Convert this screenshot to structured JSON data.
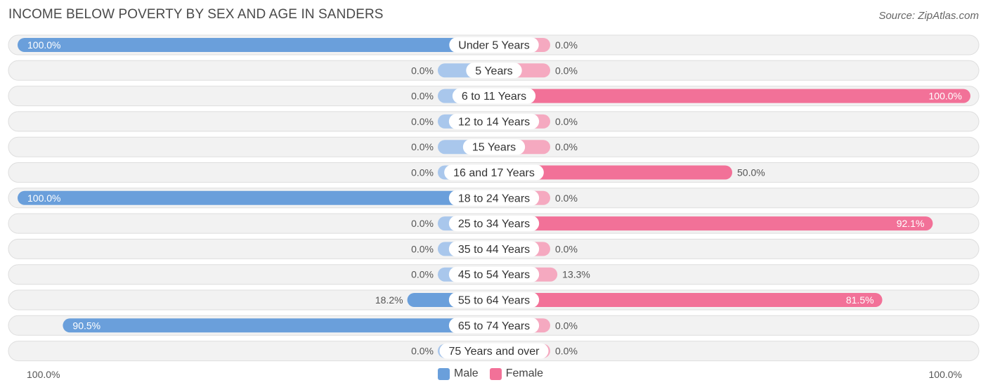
{
  "title": "INCOME BELOW POVERTY BY SEX AND AGE IN SANDERS",
  "source": "Source: ZipAtlas.com",
  "axis": {
    "left_label": "100.0%",
    "right_label": "100.0%"
  },
  "legend": {
    "male_label": "Male",
    "female_label": "Female"
  },
  "colors": {
    "male_strong": "#6a9fdb",
    "male_light": "#a9c7ec",
    "female_strong": "#f27198",
    "female_light": "#f5a9c0",
    "row_bg": "#f2f2f2",
    "row_border": "#dedede"
  },
  "chart_data": {
    "type": "bar",
    "orientation": "horizontal-diverging",
    "title": "INCOME BELOW POVERTY BY SEX AND AGE IN SANDERS",
    "xlim": [
      -100,
      100
    ],
    "categories": [
      "Under 5 Years",
      "5 Years",
      "6 to 11 Years",
      "12 to 14 Years",
      "15 Years",
      "16 and 17 Years",
      "18 to 24 Years",
      "25 to 34 Years",
      "35 to 44 Years",
      "45 to 54 Years",
      "55 to 64 Years",
      "65 to 74 Years",
      "75 Years and over"
    ],
    "series": [
      {
        "name": "Male",
        "values": [
          100.0,
          0.0,
          0.0,
          0.0,
          0.0,
          0.0,
          100.0,
          0.0,
          0.0,
          0.0,
          18.2,
          90.5,
          0.0
        ],
        "labels": [
          "100.0%",
          "0.0%",
          "0.0%",
          "0.0%",
          "0.0%",
          "0.0%",
          "100.0%",
          "0.0%",
          "0.0%",
          "0.0%",
          "18.2%",
          "90.5%",
          "0.0%"
        ]
      },
      {
        "name": "Female",
        "values": [
          0.0,
          0.0,
          100.0,
          0.0,
          0.0,
          50.0,
          0.0,
          92.1,
          0.0,
          13.3,
          81.5,
          0.0,
          0.0
        ],
        "labels": [
          "0.0%",
          "0.0%",
          "100.0%",
          "0.0%",
          "0.0%",
          "50.0%",
          "0.0%",
          "92.1%",
          "0.0%",
          "13.3%",
          "81.5%",
          "0.0%",
          "0.0%"
        ]
      }
    ]
  }
}
